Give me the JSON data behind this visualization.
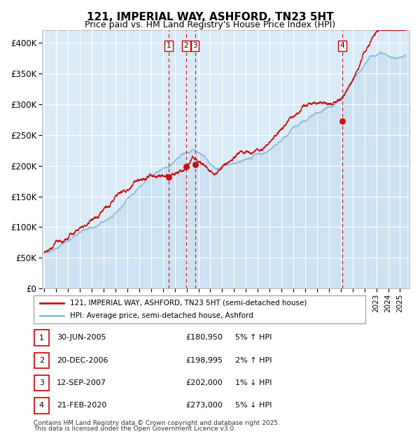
{
  "title": "121, IMPERIAL WAY, ASHFORD, TN23 5HT",
  "subtitle": "Price paid vs. HM Land Registry's House Price Index (HPI)",
  "ylim": [
    0,
    420000
  ],
  "yticks": [
    0,
    50000,
    100000,
    150000,
    200000,
    250000,
    300000,
    350000,
    400000
  ],
  "ytick_labels": [
    "£0",
    "£50K",
    "£100K",
    "£150K",
    "£200K",
    "£250K",
    "£300K",
    "£350K",
    "£400K"
  ],
  "xlim_start": 1994.8,
  "xlim_end": 2025.8,
  "plot_bg_color": "#daeaf7",
  "hpi_color": "#90bcd8",
  "hpi_fill_color": "#c5ddf0",
  "price_color": "#cc1111",
  "sale_marker_color": "#cc1111",
  "dashed_line_color": "#cc0000",
  "grid_color": "#ffffff",
  "sale_events": [
    {
      "num": 1,
      "year": 2005.497,
      "price": 180950,
      "label": "30-JUN-2005",
      "price_str": "£180,950",
      "pct": "5%",
      "dir": "↑",
      "vs": "HPI"
    },
    {
      "num": 2,
      "year": 2006.964,
      "price": 198995,
      "label": "20-DEC-2006",
      "price_str": "£198,995",
      "pct": "2%",
      "dir": "↑",
      "vs": "HPI"
    },
    {
      "num": 3,
      "year": 2007.706,
      "price": 202000,
      "label": "12-SEP-2007",
      "price_str": "£202,000",
      "pct": "1%",
      "dir": "↓",
      "vs": "HPI"
    },
    {
      "num": 4,
      "year": 2020.13,
      "price": 273000,
      "label": "21-FEB-2020",
      "price_str": "£273,000",
      "pct": "5%",
      "dir": "↓",
      "vs": "HPI"
    }
  ],
  "legend_house_label": "121, IMPERIAL WAY, ASHFORD, TN23 5HT (semi-detached house)",
  "legend_hpi_label": "HPI: Average price, semi-detached house, Ashford",
  "footer_line1": "Contains HM Land Registry data © Crown copyright and database right 2025.",
  "footer_line2": "This data is licensed under the Open Government Licence v3.0."
}
